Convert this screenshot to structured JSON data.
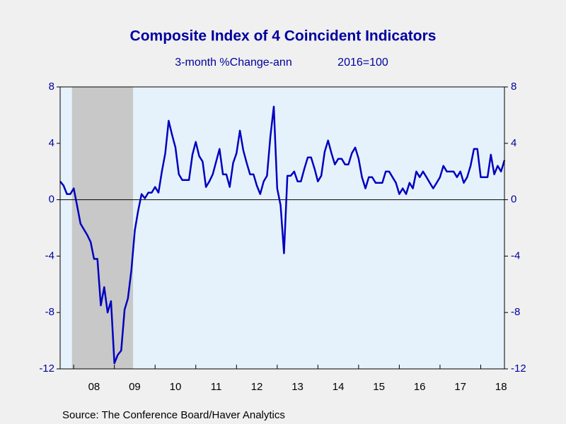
{
  "chart_data": {
    "type": "line",
    "title": "Composite Index of 4 Coincident Indicators",
    "subtitle": "3-month %Change-ann",
    "subtitle2": "2016=100",
    "source": "Source:  The Conference Board/Haver Analytics",
    "x": [
      2007.667,
      2007.75,
      2007.833,
      2007.917,
      2008.0,
      2008.083,
      2008.167,
      2008.25,
      2008.333,
      2008.417,
      2008.5,
      2008.583,
      2008.667,
      2008.75,
      2008.833,
      2008.917,
      2009.0,
      2009.083,
      2009.167,
      2009.25,
      2009.333,
      2009.417,
      2009.5,
      2009.583,
      2009.667,
      2009.75,
      2009.833,
      2009.917,
      2010.0,
      2010.083,
      2010.167,
      2010.25,
      2010.333,
      2010.417,
      2010.5,
      2010.583,
      2010.667,
      2010.75,
      2010.833,
      2010.917,
      2011.0,
      2011.083,
      2011.167,
      2011.25,
      2011.333,
      2011.417,
      2011.5,
      2011.583,
      2011.667,
      2011.75,
      2011.833,
      2011.917,
      2012.0,
      2012.083,
      2012.167,
      2012.25,
      2012.333,
      2012.417,
      2012.5,
      2012.583,
      2012.667,
      2012.75,
      2012.833,
      2012.917,
      2013.0,
      2013.083,
      2013.167,
      2013.25,
      2013.333,
      2013.417,
      2013.5,
      2013.583,
      2013.667,
      2013.75,
      2013.833,
      2013.917,
      2014.0,
      2014.083,
      2014.167,
      2014.25,
      2014.333,
      2014.417,
      2014.5,
      2014.583,
      2014.667,
      2014.75,
      2014.833,
      2014.917,
      2015.0,
      2015.083,
      2015.167,
      2015.25,
      2015.333,
      2015.417,
      2015.5,
      2015.583,
      2015.667,
      2015.75,
      2015.833,
      2015.917,
      2016.0,
      2016.083,
      2016.167,
      2016.25,
      2016.333,
      2016.417,
      2016.5,
      2016.583,
      2016.667,
      2016.75,
      2016.833,
      2016.917,
      2017.0,
      2017.083,
      2017.167,
      2017.25,
      2017.333,
      2017.417,
      2017.5,
      2017.583,
      2017.667,
      2017.75,
      2017.833,
      2017.917,
      2018.0,
      2018.083,
      2018.167,
      2018.25,
      2018.333,
      2018.417,
      2018.5,
      2018.583
    ],
    "series": [
      {
        "name": "Composite Index of 4 Coincident Indicators",
        "color": "#0000c0",
        "values": [
          1.3,
          1.0,
          0.4,
          0.4,
          0.8,
          -0.4,
          -1.7,
          -2.1,
          -2.5,
          -3.0,
          -4.2,
          -4.2,
          -7.5,
          -6.2,
          -8.0,
          -7.2,
          -11.6,
          -11.0,
          -10.7,
          -7.8,
          -7.0,
          -5.0,
          -2.2,
          -0.8,
          0.4,
          0.1,
          0.5,
          0.5,
          0.9,
          0.5,
          2.0,
          3.3,
          5.6,
          4.6,
          3.7,
          1.8,
          1.4,
          1.4,
          1.4,
          3.2,
          4.1,
          3.1,
          2.7,
          0.9,
          1.3,
          1.8,
          2.7,
          3.6,
          1.8,
          1.8,
          0.9,
          2.6,
          3.3,
          4.9,
          3.5,
          2.6,
          1.8,
          1.8,
          1.0,
          0.4,
          1.3,
          1.7,
          4.5,
          6.6,
          0.8,
          -0.4,
          -3.8,
          1.7,
          1.7,
          2.0,
          1.3,
          1.3,
          2.2,
          3.0,
          3.0,
          2.2,
          1.3,
          1.7,
          3.4,
          4.2,
          3.3,
          2.5,
          2.9,
          2.9,
          2.5,
          2.5,
          3.3,
          3.7,
          2.9,
          1.6,
          0.8,
          1.6,
          1.6,
          1.2,
          1.2,
          1.2,
          2.0,
          2.0,
          1.6,
          1.2,
          0.4,
          0.8,
          0.4,
          1.2,
          0.8,
          2.0,
          1.6,
          2.0,
          1.6,
          1.2,
          0.8,
          1.2,
          1.6,
          2.4,
          2.0,
          2.0,
          2.0,
          1.6,
          2.0,
          1.2,
          1.6,
          2.4,
          3.6,
          3.6,
          1.6,
          1.6,
          1.6,
          3.2,
          1.8,
          2.4,
          2.0,
          2.8
        ]
      }
    ],
    "xlim": [
      2007.667,
      2018.583
    ],
    "xticks": [
      {
        "value": 2008.5,
        "label": "08"
      },
      {
        "value": 2009.5,
        "label": "09"
      },
      {
        "value": 2010.5,
        "label": "10"
      },
      {
        "value": 2011.5,
        "label": "11"
      },
      {
        "value": 2012.5,
        "label": "12"
      },
      {
        "value": 2013.5,
        "label": "13"
      },
      {
        "value": 2014.5,
        "label": "14"
      },
      {
        "value": 2015.5,
        "label": "15"
      },
      {
        "value": 2016.5,
        "label": "16"
      },
      {
        "value": 2017.5,
        "label": "17"
      },
      {
        "value": 2018.5,
        "label": "18"
      }
    ],
    "ylim": [
      -12,
      8
    ],
    "yticks": [
      -12,
      -8,
      -4,
      0,
      4,
      8
    ],
    "y2lim": [
      -12,
      8
    ],
    "y2ticks": [
      -12,
      -8,
      -4,
      0,
      4,
      8
    ],
    "recessions": [
      [
        2007.958,
        2009.458
      ]
    ],
    "zero_line": true
  }
}
